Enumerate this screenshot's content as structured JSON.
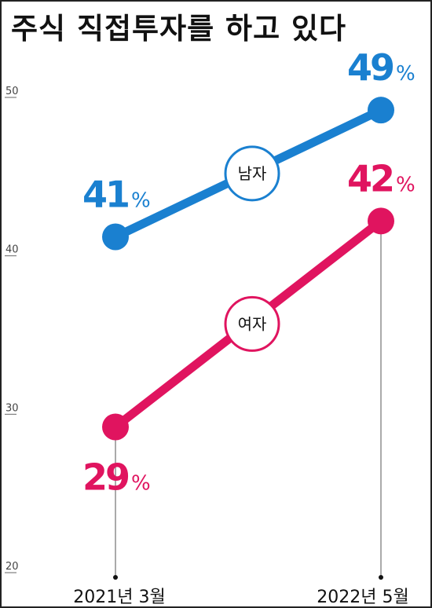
{
  "title": "주식 직접투자를 하고 있다",
  "chart_data": {
    "type": "line",
    "x": [
      "2021년 3월",
      "2022년 5월"
    ],
    "ylim": [
      20,
      50
    ],
    "yticks": [
      20,
      30,
      40,
      50
    ],
    "unit": "%",
    "series": [
      {
        "name": "남자",
        "values": [
          41,
          49
        ],
        "color": "#1a80d0"
      },
      {
        "name": "여자",
        "values": [
          29,
          42
        ],
        "color": "#e0145f"
      }
    ]
  }
}
